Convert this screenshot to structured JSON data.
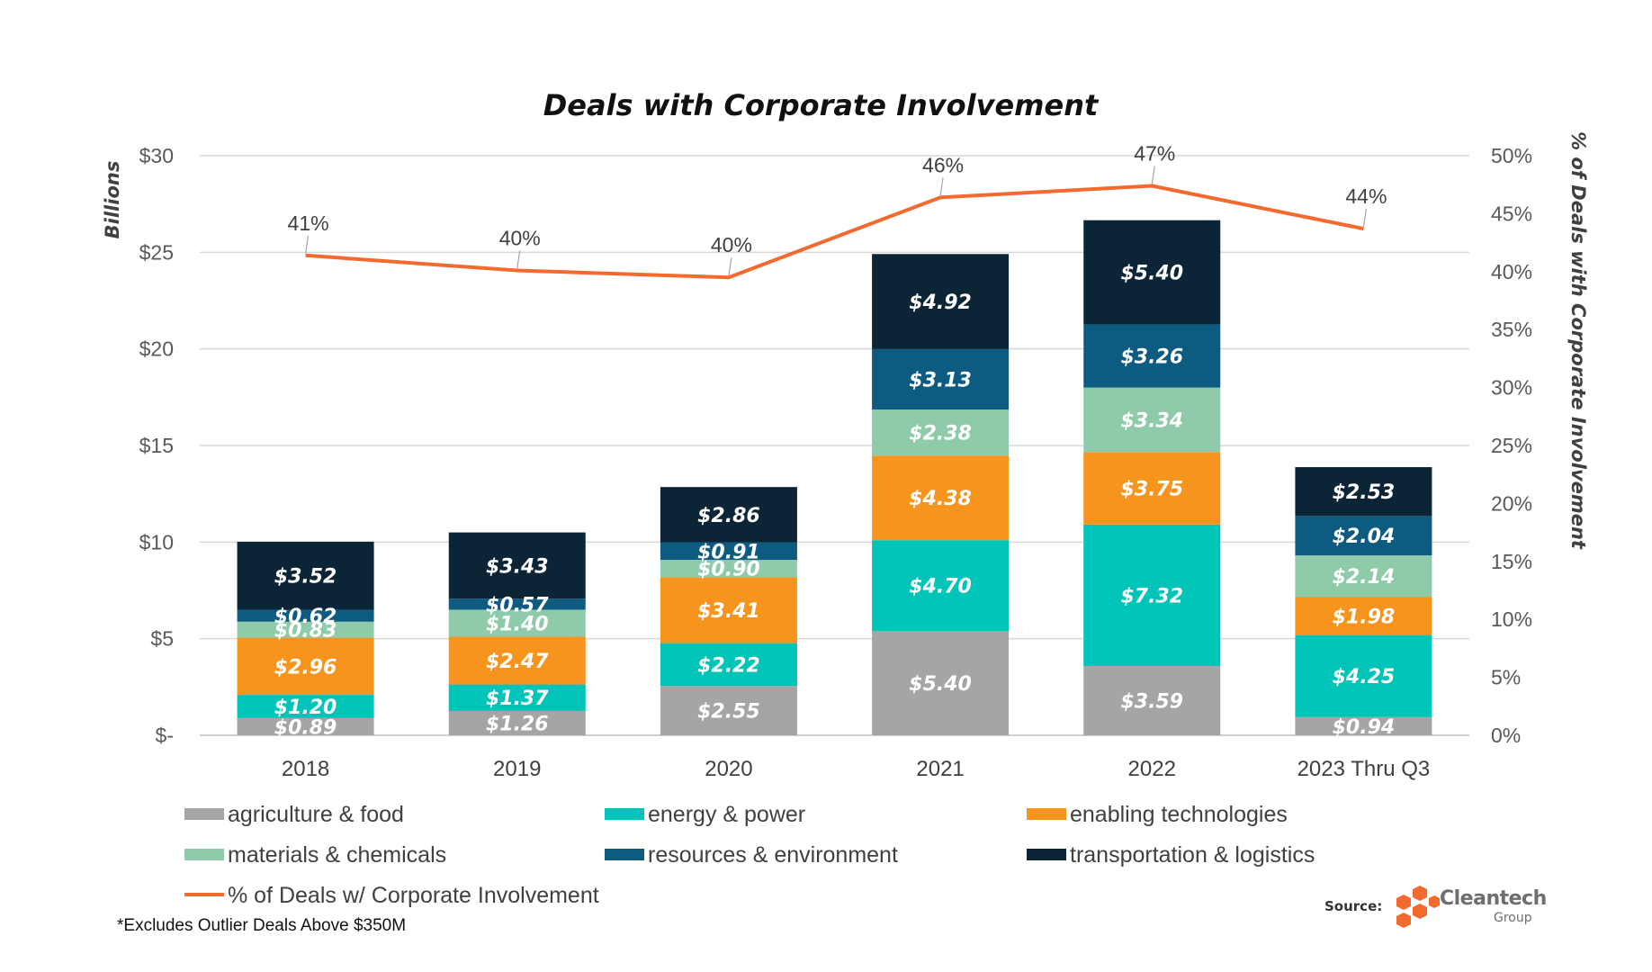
{
  "chart_data": {
    "type": "bar",
    "stacked": true,
    "title": "Deals with Corporate Involvement",
    "ylabel": "Billions",
    "y2label": "% of Deals with Corporate Involvement",
    "ylim": [
      0,
      30
    ],
    "y2lim": [
      0,
      50
    ],
    "yticks": [
      "$-",
      "$5",
      "$10",
      "$15",
      "$20",
      "$25",
      "$30"
    ],
    "y2ticks": [
      "0%",
      "5%",
      "10%",
      "15%",
      "20%",
      "25%",
      "30%",
      "35%",
      "40%",
      "45%",
      "50%"
    ],
    "grid": true,
    "legend_position": "bottom",
    "categories": [
      "2018",
      "2019",
      "2020",
      "2021",
      "2022",
      "2023 Thru Q3"
    ],
    "series": [
      {
        "name": "agriculture & food",
        "color": "#a6a4a4",
        "values": [
          0.89,
          1.26,
          2.55,
          5.4,
          3.59,
          0.94
        ],
        "labels": [
          "$0.89",
          "$1.26",
          "$2.55",
          "$5.40",
          "$3.59",
          "$0.94"
        ]
      },
      {
        "name": "energy & power",
        "color": "#00c4b8",
        "values": [
          1.2,
          1.37,
          2.22,
          4.7,
          7.32,
          4.25
        ],
        "labels": [
          "$1.20",
          "$1.37",
          "$2.22",
          "$4.70",
          "$7.32",
          "$4.25"
        ]
      },
      {
        "name": "enabling technologies",
        "color": "#f7941d",
        "values": [
          2.96,
          2.47,
          3.41,
          4.38,
          3.75,
          1.98
        ],
        "labels": [
          "$2.96",
          "$2.47",
          "$3.41",
          "$4.38",
          "$3.75",
          "$1.98"
        ]
      },
      {
        "name": "materials & chemicals",
        "color": "#8fcbaa",
        "values": [
          0.83,
          1.4,
          0.9,
          2.38,
          3.34,
          2.14
        ],
        "labels": [
          "$0.83",
          "$1.40",
          "$0.90",
          "$2.38",
          "$3.34",
          "$2.14"
        ]
      },
      {
        "name": "resources & environment",
        "color": "#0d5b80",
        "values": [
          0.62,
          0.57,
          0.91,
          3.13,
          3.26,
          2.04
        ],
        "labels": [
          "$0.62",
          "$0.57",
          "$0.91",
          "$3.13",
          "$3.26",
          "$2.04"
        ]
      },
      {
        "name": "transportation & logistics",
        "color": "#0b2536",
        "values": [
          3.52,
          3.43,
          2.86,
          4.92,
          5.4,
          2.53
        ],
        "labels": [
          "$3.52",
          "$3.43",
          "$2.86",
          "$4.92",
          "$5.40",
          "$2.53"
        ]
      }
    ],
    "line_series": {
      "name": "% of Deals w/ Corporate Involvement",
      "color": "#f26a2e",
      "axis": "secondary",
      "values": [
        41.4,
        40.1,
        39.5,
        46.4,
        47.4,
        43.7
      ],
      "labels": [
        "41%",
        "40%",
        "40%",
        "46%",
        "47%",
        "44%"
      ]
    }
  },
  "footnote": "*Excludes Outlier Deals Above $350M",
  "source": {
    "label": "Source:",
    "logo_name": "Cleantech",
    "logo_sub": "Group",
    "logo_color": "#f26a2e"
  }
}
